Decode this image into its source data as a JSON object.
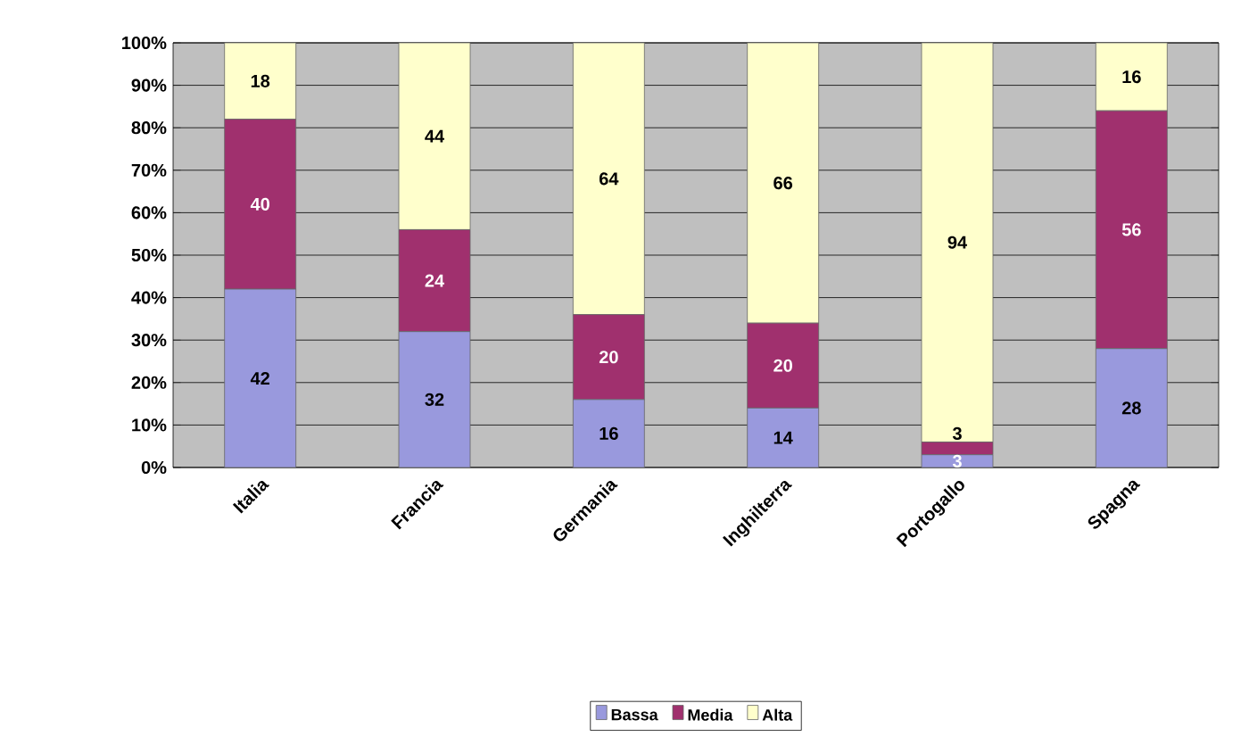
{
  "chart_data": {
    "type": "bar",
    "stacked": true,
    "categories": [
      "Italia",
      "Francia",
      "Germania",
      "Inghilterra",
      "Portogallo",
      "Spagna"
    ],
    "series": [
      {
        "name": "Bassa",
        "color": "#9999dd",
        "values": [
          42,
          32,
          16,
          14,
          3,
          28
        ]
      },
      {
        "name": "Media",
        "color": "#a0306e",
        "values": [
          40,
          24,
          20,
          20,
          3,
          56
        ]
      },
      {
        "name": "Alta",
        "color": "#ffffcc",
        "values": [
          18,
          44,
          64,
          66,
          94,
          16
        ]
      }
    ],
    "ylim": [
      0,
      100
    ],
    "yticks": [
      {
        "value": 0,
        "label": "0%"
      },
      {
        "value": 10,
        "label": "10%"
      },
      {
        "value": 20,
        "label": "20%"
      },
      {
        "value": 30,
        "label": "30%"
      },
      {
        "value": 40,
        "label": "40%"
      },
      {
        "value": 50,
        "label": "50%"
      },
      {
        "value": 60,
        "label": "60%"
      },
      {
        "value": 70,
        "label": "70%"
      },
      {
        "value": 80,
        "label": "80%"
      },
      {
        "value": 90,
        "label": "90%"
      },
      {
        "value": 100,
        "label": "100%"
      }
    ],
    "grid": "y",
    "legend": "bottom",
    "data_labels": true
  }
}
